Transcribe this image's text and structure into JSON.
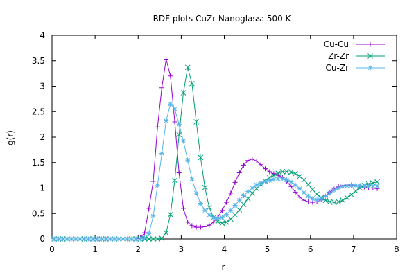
{
  "chart_data": {
    "type": "line",
    "title": "RDF plots CuZr Nanoglass: 500 K",
    "xlabel": "r",
    "ylabel": "g(r)",
    "xlim": [
      0,
      8
    ],
    "ylim": [
      0,
      4
    ],
    "xticks": [
      0,
      1,
      2,
      3,
      4,
      5,
      6,
      7,
      8
    ],
    "xtick_labels": [
      "0",
      "1",
      "2",
      "3",
      "4",
      "5",
      "6",
      "7",
      "8"
    ],
    "yticks": [
      0,
      0.5,
      1,
      1.5,
      2,
      2.5,
      3,
      3.5,
      4
    ],
    "ytick_labels": [
      "0",
      "0.5",
      "1",
      "1.5",
      "2",
      "2.5",
      "3",
      "3.5",
      "4"
    ],
    "grid": false,
    "legend_position": "top-right",
    "x_start": 0.05,
    "x_step": 0.1,
    "series": [
      {
        "name": "Cu-Cu",
        "color": "#9400d3",
        "marker": "plus",
        "values": [
          0,
          0,
          0,
          0,
          0,
          0,
          0,
          0,
          0,
          0,
          0,
          0,
          0,
          0,
          0,
          0,
          0,
          0,
          0,
          0,
          0.02,
          0.12,
          0.6,
          1.13,
          2.2,
          2.97,
          3.53,
          3.2,
          2.3,
          1.3,
          0.6,
          0.33,
          0.26,
          0.23,
          0.23,
          0.24,
          0.27,
          0.33,
          0.43,
          0.56,
          0.72,
          0.9,
          1.11,
          1.3,
          1.45,
          1.54,
          1.57,
          1.53,
          1.46,
          1.38,
          1.32,
          1.28,
          1.25,
          1.21,
          1.13,
          1.03,
          0.92,
          0.82,
          0.76,
          0.73,
          0.72,
          0.73,
          0.77,
          0.84,
          0.92,
          0.98,
          1.03,
          1.05,
          1.06,
          1.06,
          1.05,
          1.03,
          1.02,
          1.0,
          1.0,
          0.99
        ]
      },
      {
        "name": "Zr-Zr",
        "color": "#009e73",
        "marker": "cross",
        "values": [
          0,
          0,
          0,
          0,
          0,
          0,
          0,
          0,
          0,
          0,
          0,
          0,
          0,
          0,
          0,
          0,
          0,
          0,
          0,
          0,
          0,
          0,
          0,
          0,
          0,
          0.01,
          0.12,
          0.48,
          1.15,
          2.05,
          2.87,
          3.37,
          3.05,
          2.3,
          1.6,
          1.01,
          0.62,
          0.42,
          0.34,
          0.31,
          0.33,
          0.39,
          0.47,
          0.57,
          0.68,
          0.79,
          0.9,
          0.99,
          1.07,
          1.14,
          1.2,
          1.25,
          1.29,
          1.32,
          1.32,
          1.31,
          1.28,
          1.23,
          1.16,
          1.07,
          0.97,
          0.88,
          0.81,
          0.76,
          0.73,
          0.72,
          0.73,
          0.76,
          0.81,
          0.87,
          0.94,
          1.0,
          1.05,
          1.08,
          1.1,
          1.12
        ]
      },
      {
        "name": "Cu-Zr",
        "color": "#56b4e9",
        "marker": "star",
        "values": [
          0,
          0,
          0,
          0,
          0,
          0,
          0,
          0,
          0,
          0,
          0,
          0,
          0,
          0,
          0,
          0,
          0,
          0,
          0,
          0,
          0,
          0.02,
          0.1,
          0.45,
          1.05,
          1.68,
          2.32,
          2.65,
          2.55,
          2.25,
          1.92,
          1.55,
          1.18,
          0.9,
          0.7,
          0.56,
          0.47,
          0.42,
          0.4,
          0.42,
          0.48,
          0.56,
          0.66,
          0.76,
          0.85,
          0.93,
          1.0,
          1.06,
          1.1,
          1.13,
          1.15,
          1.17,
          1.18,
          1.18,
          1.16,
          1.12,
          1.06,
          0.99,
          0.91,
          0.84,
          0.79,
          0.77,
          0.79,
          0.84,
          0.9,
          0.96,
          1.0,
          1.03,
          1.04,
          1.05,
          1.05,
          1.05,
          1.04,
          1.04,
          1.04,
          1.04
        ]
      }
    ]
  }
}
